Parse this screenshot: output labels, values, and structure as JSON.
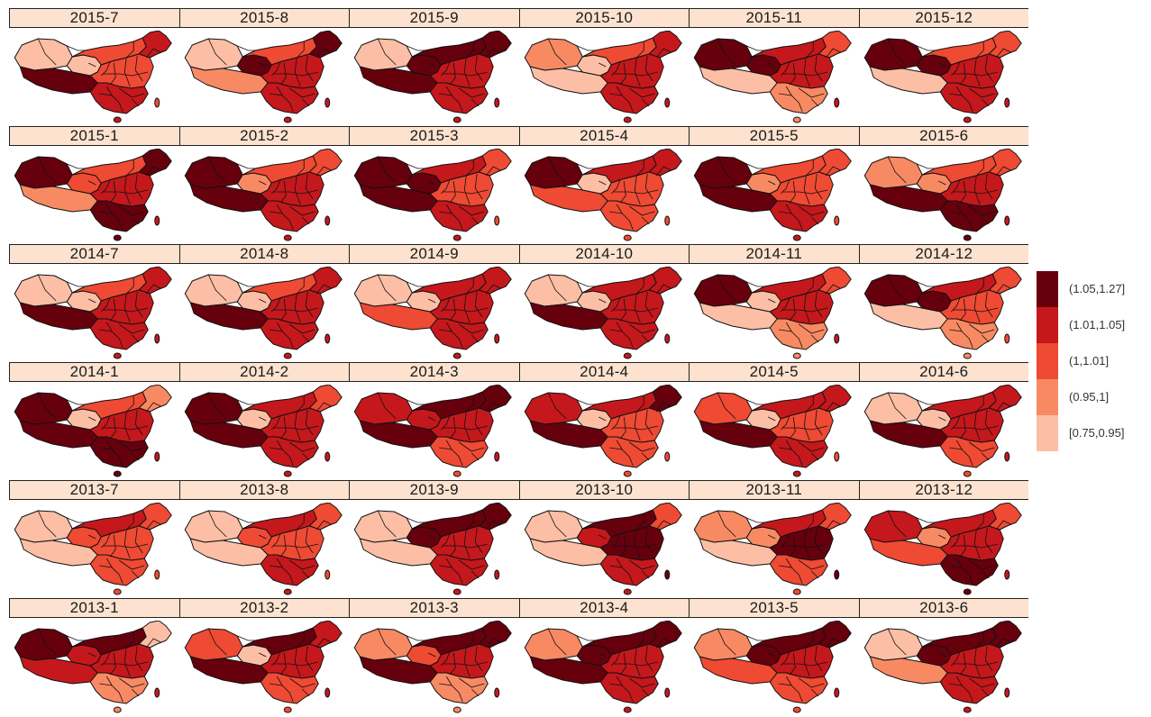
{
  "legend": {
    "classes": [
      {
        "label": "(1.05,1.27]",
        "color": "#67000d"
      },
      {
        "label": "(1.01,1.05]",
        "color": "#c5181c"
      },
      {
        "label": "(1,1.01]",
        "color": "#ef4a33"
      },
      {
        "label": "(0.95,1]",
        "color": "#f88a63"
      },
      {
        "label": "[0.75,0.95]",
        "color": "#fcbfa6"
      }
    ]
  },
  "panels": [
    {
      "label": "2015-7",
      "west": 4,
      "tibet": 0,
      "qinghai": 4,
      "north": 2,
      "northeast": 1,
      "east": 2,
      "south": 1
    },
    {
      "label": "2015-8",
      "west": 4,
      "tibet": 3,
      "qinghai": 0,
      "north": 2,
      "northeast": 0,
      "east": 1,
      "south": 1
    },
    {
      "label": "2015-9",
      "west": 4,
      "tibet": 0,
      "qinghai": 0,
      "north": 0,
      "northeast": 0,
      "east": 1,
      "south": 1
    },
    {
      "label": "2015-10",
      "west": 3,
      "tibet": 4,
      "qinghai": 4,
      "north": 2,
      "northeast": 1,
      "east": 1,
      "south": 1
    },
    {
      "label": "2015-11",
      "west": 0,
      "tibet": 4,
      "qinghai": 0,
      "north": 1,
      "northeast": 2,
      "east": 1,
      "south": 3
    },
    {
      "label": "2015-12",
      "west": 0,
      "tibet": 4,
      "qinghai": 0,
      "north": 2,
      "northeast": 2,
      "east": 1,
      "south": 1
    },
    {
      "label": "2015-1",
      "west": 0,
      "tibet": 3,
      "qinghai": 2,
      "north": 2,
      "northeast": 0,
      "east": 1,
      "south": 0
    },
    {
      "label": "2015-2",
      "west": 0,
      "tibet": 0,
      "qinghai": 3,
      "north": 2,
      "northeast": 2,
      "east": 1,
      "south": 1
    },
    {
      "label": "2015-3",
      "west": 0,
      "tibet": 0,
      "qinghai": 0,
      "north": 1,
      "northeast": 2,
      "east": 2,
      "south": 1
    },
    {
      "label": "2015-4",
      "west": 0,
      "tibet": 2,
      "qinghai": 4,
      "north": 1,
      "northeast": 1,
      "east": 2,
      "south": 2
    },
    {
      "label": "2015-5",
      "west": 0,
      "tibet": 0,
      "qinghai": 3,
      "north": 2,
      "northeast": 2,
      "east": 2,
      "south": 1
    },
    {
      "label": "2015-6",
      "west": 3,
      "tibet": 0,
      "qinghai": 3,
      "north": 2,
      "northeast": 2,
      "east": 1,
      "south": 0
    },
    {
      "label": "2014-7",
      "west": 4,
      "tibet": 0,
      "qinghai": 4,
      "north": 2,
      "northeast": 1,
      "east": 1,
      "south": 1
    },
    {
      "label": "2014-8",
      "west": 4,
      "tibet": 0,
      "qinghai": 4,
      "north": 2,
      "northeast": 1,
      "east": 1,
      "south": 1
    },
    {
      "label": "2014-9",
      "west": 4,
      "tibet": 2,
      "qinghai": 4,
      "north": 1,
      "northeast": 1,
      "east": 1,
      "south": 1
    },
    {
      "label": "2014-10",
      "west": 4,
      "tibet": 0,
      "qinghai": 4,
      "north": 1,
      "northeast": 1,
      "east": 1,
      "south": 1
    },
    {
      "label": "2014-11",
      "west": 0,
      "tibet": 4,
      "qinghai": 4,
      "north": 1,
      "northeast": 2,
      "east": 1,
      "south": 3
    },
    {
      "label": "2014-12",
      "west": 0,
      "tibet": 4,
      "qinghai": 0,
      "north": 1,
      "northeast": 2,
      "east": 2,
      "south": 3
    },
    {
      "label": "2014-1",
      "west": 0,
      "tibet": 0,
      "qinghai": 4,
      "north": 2,
      "northeast": 3,
      "east": 1,
      "south": 0
    },
    {
      "label": "2014-2",
      "west": 0,
      "tibet": 0,
      "qinghai": 4,
      "north": 1,
      "northeast": 2,
      "east": 1,
      "south": 1
    },
    {
      "label": "2014-3",
      "west": 1,
      "tibet": 0,
      "qinghai": 1,
      "north": 0,
      "northeast": 0,
      "east": 1,
      "south": 2
    },
    {
      "label": "2014-4",
      "west": 1,
      "tibet": 0,
      "qinghai": 4,
      "north": 1,
      "northeast": 0,
      "east": 2,
      "south": 2
    },
    {
      "label": "2014-5",
      "west": 2,
      "tibet": 0,
      "qinghai": 4,
      "north": 1,
      "northeast": 1,
      "east": 2,
      "south": 1
    },
    {
      "label": "2014-6",
      "west": 4,
      "tibet": 0,
      "qinghai": 4,
      "north": 1,
      "northeast": 1,
      "east": 1,
      "south": 2
    },
    {
      "label": "2013-7",
      "west": 4,
      "tibet": 4,
      "qinghai": 2,
      "north": 1,
      "northeast": 2,
      "east": 2,
      "south": 2
    },
    {
      "label": "2013-8",
      "west": 4,
      "tibet": 4,
      "qinghai": 2,
      "north": 1,
      "northeast": 2,
      "east": 2,
      "south": 1
    },
    {
      "label": "2013-9",
      "west": 4,
      "tibet": 4,
      "qinghai": 0,
      "north": 0,
      "northeast": 0,
      "east": 1,
      "south": 1
    },
    {
      "label": "2013-10",
      "west": 4,
      "tibet": 4,
      "qinghai": 1,
      "north": 0,
      "northeast": 2,
      "east": 0,
      "south": 1
    },
    {
      "label": "2013-11",
      "west": 3,
      "tibet": 4,
      "qinghai": 3,
      "north": 1,
      "northeast": 2,
      "east": 0,
      "south": 2
    },
    {
      "label": "2013-12",
      "west": 1,
      "tibet": 2,
      "qinghai": 3,
      "north": 1,
      "northeast": 2,
      "east": 1,
      "south": 0
    },
    {
      "label": "2013-1",
      "west": 0,
      "tibet": 1,
      "qinghai": 1,
      "north": 0,
      "northeast": 4,
      "east": 1,
      "south": 3
    },
    {
      "label": "2013-2",
      "west": 2,
      "tibet": 0,
      "qinghai": 4,
      "north": 0,
      "northeast": 1,
      "east": 1,
      "south": 2
    },
    {
      "label": "2013-3",
      "west": 3,
      "tibet": 0,
      "qinghai": 2,
      "north": 0,
      "northeast": 0,
      "east": 1,
      "south": 3
    },
    {
      "label": "2013-4",
      "west": 3,
      "tibet": 0,
      "qinghai": 0,
      "north": 0,
      "northeast": 0,
      "east": 1,
      "south": 1
    },
    {
      "label": "2013-5",
      "west": 3,
      "tibet": 2,
      "qinghai": 0,
      "north": 0,
      "northeast": 0,
      "east": 1,
      "south": 2
    },
    {
      "label": "2013-6",
      "west": 4,
      "tibet": 3,
      "qinghai": 0,
      "north": 0,
      "northeast": 0,
      "east": 1,
      "south": 1
    }
  ]
}
